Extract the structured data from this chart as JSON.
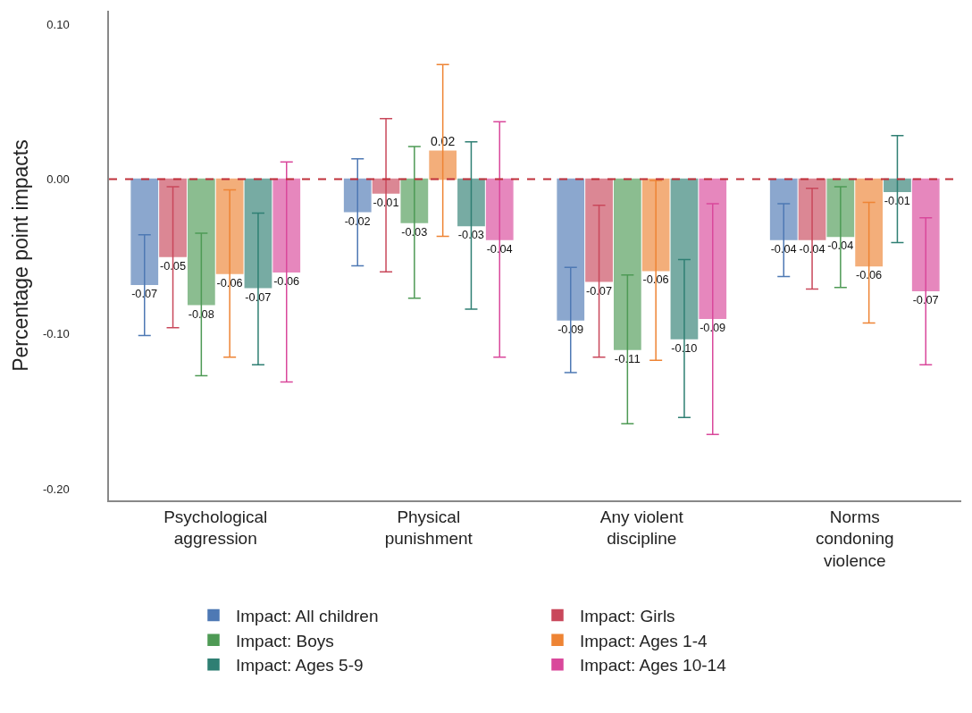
{
  "chart_data": {
    "type": "bar",
    "ylabel": "Percentage point impacts",
    "categories": [
      "Psychological aggression",
      "Physical punishment",
      "Any violent discipline",
      "Norms condoning violence"
    ],
    "series": [
      {
        "name": "Impact: All children",
        "color": "#4e79b4",
        "values": [
          -0.068,
          -0.021,
          -0.091,
          -0.039
        ],
        "value_labels": [
          "-0.07",
          "-0.02",
          "-0.09",
          "-0.04"
        ],
        "errors": [
          [
            -0.101,
            -0.036
          ],
          [
            -0.056,
            0.013
          ],
          [
            -0.125,
            -0.057
          ],
          [
            -0.063,
            -0.016
          ]
        ]
      },
      {
        "name": "Impact: Girls",
        "color": "#c9485b",
        "values": [
          -0.05,
          -0.009,
          -0.066,
          -0.039
        ],
        "value_labels": [
          "-0.05",
          "-0.01",
          "-0.07",
          "-0.04"
        ],
        "errors": [
          [
            -0.096,
            -0.005
          ],
          [
            -0.06,
            0.039
          ],
          [
            -0.115,
            -0.017
          ],
          [
            -0.071,
            -0.006
          ]
        ]
      },
      {
        "name": "Impact: Boys",
        "color": "#4e9a55",
        "values": [
          -0.081,
          -0.028,
          -0.11,
          -0.037
        ],
        "value_labels": [
          "-0.08",
          "-0.03",
          "-0.11",
          "-0.04"
        ],
        "errors": [
          [
            -0.127,
            -0.035
          ],
          [
            -0.077,
            0.021
          ],
          [
            -0.158,
            -0.062
          ],
          [
            -0.07,
            -0.005
          ]
        ]
      },
      {
        "name": "Impact: Ages 1-4",
        "color": "#ee8434",
        "values": [
          -0.061,
          0.018,
          -0.059,
          -0.056
        ],
        "value_labels": [
          "-0.06",
          "0.02",
          "-0.06",
          "-0.06"
        ],
        "errors": [
          [
            -0.115,
            -0.007
          ],
          [
            -0.037,
            0.074
          ],
          [
            -0.117,
            -0.001
          ],
          [
            -0.093,
            -0.015
          ]
        ]
      },
      {
        "name": "Impact: Ages 5-9",
        "color": "#2f7f73",
        "values": [
          -0.07,
          -0.03,
          -0.103,
          -0.008
        ],
        "value_labels": [
          "-0.07",
          "-0.03",
          "-0.10",
          "-0.01"
        ],
        "errors": [
          [
            -0.12,
            -0.022
          ],
          [
            -0.084,
            0.024
          ],
          [
            -0.154,
            -0.052
          ],
          [
            -0.041,
            0.028
          ]
        ]
      },
      {
        "name": "Impact: Ages 10-14",
        "color": "#d9489b",
        "values": [
          -0.06,
          -0.039,
          -0.09,
          -0.072
        ],
        "value_labels": [
          "-0.06",
          "-0.04",
          "-0.09",
          "-0.07"
        ],
        "errors": [
          [
            -0.131,
            0.011
          ],
          [
            -0.115,
            0.037
          ],
          [
            -0.165,
            -0.016
          ],
          [
            -0.12,
            -0.025
          ]
        ]
      }
    ],
    "ylim": [
      -0.2075,
      0.1087
    ],
    "yticks": [
      {
        "value": 0.1,
        "label": "0.10"
      },
      {
        "value": 0,
        "label": "0.00"
      },
      {
        "value": -0.1,
        "label": "-0.10"
      },
      {
        "value": -0.2,
        "label": "-0.20"
      }
    ],
    "ref_lines": [
      {
        "axis": "y",
        "value": 0,
        "color": "#c0303a",
        "line_style": "dashed"
      }
    ],
    "grid": false,
    "legend": "bottom"
  }
}
